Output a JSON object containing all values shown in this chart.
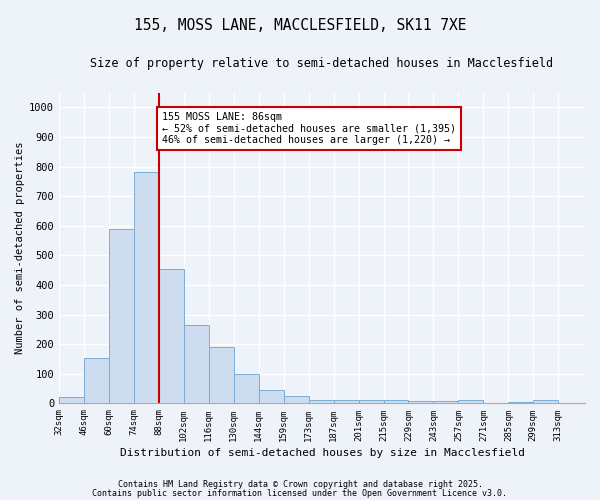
{
  "title1": "155, MOSS LANE, MACCLESFIELD, SK11 7XE",
  "title2": "Size of property relative to semi-detached houses in Macclesfield",
  "xlabel": "Distribution of semi-detached houses by size in Macclesfield",
  "ylabel": "Number of semi-detached properties",
  "bar_labels": [
    "32sqm",
    "46sqm",
    "60sqm",
    "74sqm",
    "88sqm",
    "102sqm",
    "116sqm",
    "130sqm",
    "144sqm",
    "159sqm",
    "173sqm",
    "187sqm",
    "201sqm",
    "215sqm",
    "229sqm",
    "243sqm",
    "257sqm",
    "271sqm",
    "285sqm",
    "299sqm",
    "313sqm"
  ],
  "bar_values": [
    22,
    155,
    590,
    780,
    455,
    265,
    190,
    100,
    45,
    25,
    12,
    13,
    10,
    10,
    8,
    8,
    10,
    2,
    5,
    10
  ],
  "bar_color": "#cddcee",
  "bar_edge_color": "#7aadd4",
  "property_line_x": 88,
  "annotation_text": "155 MOSS LANE: 86sqm\n← 52% of semi-detached houses are smaller (1,395)\n46% of semi-detached houses are larger (1,220) →",
  "annotation_box_color": "#ffffff",
  "annotation_box_edge": "#cc0000",
  "vline_color": "#cc0000",
  "ylim": [
    0,
    1050
  ],
  "yticks": [
    0,
    100,
    200,
    300,
    400,
    500,
    600,
    700,
    800,
    900,
    1000
  ],
  "footer1": "Contains HM Land Registry data © Crown copyright and database right 2025.",
  "footer2": "Contains public sector information licensed under the Open Government Licence v3.0.",
  "bg_color": "#eef2f9",
  "grid_color": "#ffffff"
}
